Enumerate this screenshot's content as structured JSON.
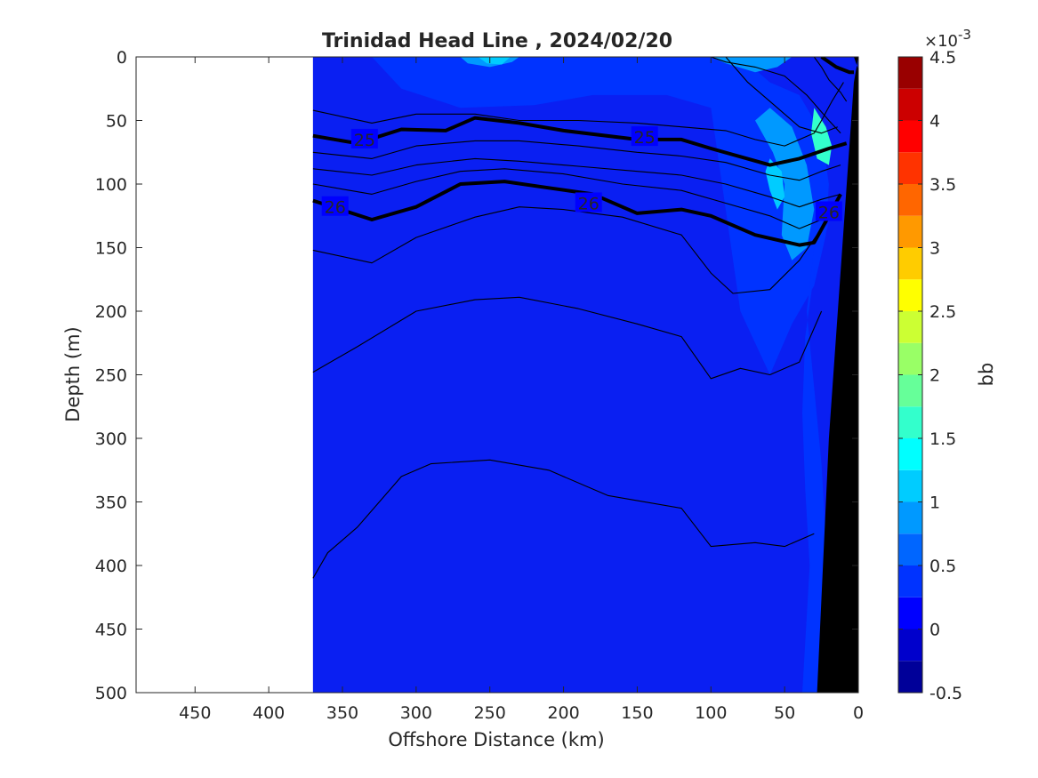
{
  "chart_data": {
    "type": "heatmap",
    "title": "Trinidad Head Line , 2024/02/20",
    "xlabel": "Offshore Distance (km)",
    "ylabel": "Depth (m)",
    "xlim": [
      490,
      0
    ],
    "ylim": [
      500,
      0
    ],
    "x_reversed": true,
    "y_reversed": true,
    "x_ticks": [
      450,
      400,
      350,
      300,
      250,
      200,
      150,
      100,
      50,
      0
    ],
    "y_ticks": [
      0,
      50,
      100,
      150,
      200,
      250,
      300,
      350,
      400,
      450,
      500
    ],
    "data_start_km": 370,
    "colorbar": {
      "label": "bb",
      "exponent_prefix": "×10",
      "exponent": "-3",
      "range": [
        -0.5,
        4.5
      ],
      "ticks": [
        -0.5,
        0,
        0.5,
        1,
        1.5,
        2,
        2.5,
        3,
        3.5,
        4,
        4.5
      ],
      "tick_labels": [
        "-0.5",
        "0",
        "0.5",
        "1",
        "1.5",
        "2",
        "2.5",
        "3",
        "3.5",
        "4",
        "4.5"
      ],
      "colormap": "jet",
      "levels": 20
    },
    "background_color": "#0a1ff2",
    "patches": [
      {
        "value": 0.45,
        "points": [
          [
            370,
            0
          ],
          [
            330,
            0
          ],
          [
            310,
            25
          ],
          [
            270,
            40
          ],
          [
            220,
            38
          ],
          [
            180,
            30
          ],
          [
            130,
            30
          ],
          [
            100,
            40
          ],
          [
            90,
            120
          ],
          [
            80,
            200
          ],
          [
            60,
            250
          ],
          [
            45,
            210
          ],
          [
            30,
            180
          ],
          [
            22,
            140
          ],
          [
            20,
            100
          ],
          [
            25,
            60
          ],
          [
            40,
            30
          ],
          [
            60,
            20
          ],
          [
            80,
            0
          ],
          [
            240,
            0
          ]
        ]
      },
      {
        "value": 0.45,
        "points": [
          [
            20,
            130
          ],
          [
            30,
            150
          ],
          [
            35,
            200
          ],
          [
            30,
            260
          ],
          [
            25,
            320
          ],
          [
            22,
            380
          ],
          [
            24,
            450
          ],
          [
            28,
            500
          ],
          [
            38,
            500
          ],
          [
            35,
            440
          ],
          [
            33,
            400
          ],
          [
            36,
            340
          ],
          [
            38,
            280
          ],
          [
            36,
            220
          ],
          [
            30,
            170
          ]
        ]
      },
      {
        "value": 0.75,
        "points": [
          [
            60,
            40
          ],
          [
            45,
            55
          ],
          [
            35,
            85
          ],
          [
            30,
            120
          ],
          [
            35,
            150
          ],
          [
            45,
            160
          ],
          [
            52,
            140
          ],
          [
            50,
            100
          ],
          [
            58,
            75
          ],
          [
            70,
            50
          ]
        ]
      },
      {
        "value": 0.75,
        "points": [
          [
            100,
            0
          ],
          [
            90,
            5
          ],
          [
            70,
            12
          ],
          [
            55,
            8
          ],
          [
            45,
            0
          ]
        ]
      },
      {
        "value": 0.9,
        "points": [
          [
            270,
            0
          ],
          [
            265,
            5
          ],
          [
            250,
            8
          ],
          [
            235,
            4
          ],
          [
            230,
            0
          ]
        ]
      },
      {
        "value": 1.6,
        "points": [
          [
            30,
            40
          ],
          [
            22,
            55
          ],
          [
            18,
            70
          ],
          [
            20,
            85
          ],
          [
            28,
            80
          ],
          [
            32,
            60
          ]
        ]
      },
      {
        "value": 1.0,
        "points": [
          [
            60,
            80
          ],
          [
            52,
            90
          ],
          [
            50,
            110
          ],
          [
            55,
            120
          ],
          [
            60,
            105
          ],
          [
            63,
            90
          ]
        ]
      },
      {
        "value": 1.2,
        "points": [
          [
            258,
            0
          ],
          [
            252,
            5
          ],
          [
            242,
            6
          ],
          [
            236,
            0
          ]
        ]
      }
    ],
    "isopycnals": [
      {
        "label": "25",
        "bold": true,
        "points": [
          [
            370,
            62
          ],
          [
            340,
            68
          ],
          [
            310,
            57
          ],
          [
            280,
            58
          ],
          [
            260,
            48
          ],
          [
            230,
            52
          ],
          [
            200,
            58
          ],
          [
            150,
            65
          ],
          [
            120,
            65
          ],
          [
            100,
            72
          ],
          [
            60,
            85
          ],
          [
            40,
            80
          ],
          [
            20,
            72
          ],
          [
            8,
            68
          ]
        ],
        "label_at": [
          [
            335,
            65
          ],
          [
            145,
            63
          ]
        ]
      },
      {
        "label": "26",
        "bold": true,
        "points": [
          [
            370,
            113
          ],
          [
            330,
            128
          ],
          [
            300,
            118
          ],
          [
            270,
            100
          ],
          [
            240,
            98
          ],
          [
            210,
            103
          ],
          [
            180,
            108
          ],
          [
            150,
            123
          ],
          [
            120,
            120
          ],
          [
            100,
            125
          ],
          [
            70,
            140
          ],
          [
            40,
            148
          ],
          [
            30,
            146
          ],
          [
            20,
            125
          ],
          [
            12,
            108
          ]
        ],
        "label_at": [
          [
            355,
            118
          ],
          [
            183,
            115
          ],
          [
            20,
            122
          ]
        ]
      },
      {
        "label": "",
        "bold": false,
        "points": [
          [
            370,
            42
          ],
          [
            330,
            52
          ],
          [
            300,
            45
          ],
          [
            260,
            45
          ],
          [
            230,
            50
          ],
          [
            190,
            50
          ],
          [
            150,
            52
          ],
          [
            120,
            55
          ],
          [
            90,
            58
          ],
          [
            70,
            65
          ],
          [
            50,
            70
          ],
          [
            30,
            60
          ],
          [
            25,
            50
          ],
          [
            18,
            35
          ],
          [
            10,
            20
          ]
        ]
      },
      {
        "label": "",
        "bold": false,
        "points": [
          [
            370,
            75
          ],
          [
            330,
            80
          ],
          [
            300,
            70
          ],
          [
            260,
            66
          ],
          [
            230,
            66
          ],
          [
            190,
            70
          ],
          [
            150,
            75
          ],
          [
            120,
            78
          ],
          [
            90,
            83
          ],
          [
            60,
            93
          ],
          [
            40,
            97
          ],
          [
            25,
            90
          ],
          [
            12,
            85
          ]
        ]
      },
      {
        "label": "",
        "bold": false,
        "points": [
          [
            370,
            88
          ],
          [
            330,
            93
          ],
          [
            300,
            85
          ],
          [
            260,
            80
          ],
          [
            230,
            82
          ],
          [
            190,
            86
          ],
          [
            150,
            90
          ],
          [
            120,
            93
          ],
          [
            90,
            100
          ],
          [
            60,
            110
          ],
          [
            40,
            118
          ],
          [
            25,
            112
          ],
          [
            12,
            108
          ]
        ]
      },
      {
        "label": "",
        "bold": false,
        "points": [
          [
            370,
            100
          ],
          [
            330,
            108
          ],
          [
            300,
            98
          ],
          [
            270,
            90
          ],
          [
            240,
            88
          ],
          [
            200,
            92
          ],
          [
            160,
            100
          ],
          [
            120,
            105
          ],
          [
            90,
            115
          ],
          [
            60,
            125
          ],
          [
            40,
            135
          ],
          [
            25,
            128
          ]
        ]
      },
      {
        "label": "",
        "bold": false,
        "points": [
          [
            370,
            152
          ],
          [
            330,
            162
          ],
          [
            300,
            142
          ],
          [
            260,
            126
          ],
          [
            230,
            118
          ],
          [
            200,
            120
          ],
          [
            160,
            126
          ],
          [
            120,
            140
          ],
          [
            100,
            170
          ],
          [
            85,
            186
          ],
          [
            60,
            183
          ],
          [
            40,
            160
          ],
          [
            28,
            140
          ]
        ]
      },
      {
        "label": "",
        "bold": false,
        "points": [
          [
            370,
            248
          ],
          [
            340,
            228
          ],
          [
            300,
            200
          ],
          [
            260,
            191
          ],
          [
            230,
            189
          ],
          [
            190,
            198
          ],
          [
            150,
            210
          ],
          [
            120,
            220
          ],
          [
            100,
            253
          ],
          [
            80,
            245
          ],
          [
            60,
            250
          ],
          [
            40,
            240
          ],
          [
            25,
            200
          ]
        ]
      },
      {
        "label": "",
        "bold": false,
        "points": [
          [
            370,
            410
          ],
          [
            360,
            390
          ],
          [
            340,
            370
          ],
          [
            310,
            330
          ],
          [
            290,
            320
          ],
          [
            250,
            317
          ],
          [
            210,
            325
          ],
          [
            170,
            345
          ],
          [
            120,
            355
          ],
          [
            100,
            385
          ],
          [
            70,
            382
          ],
          [
            50,
            385
          ],
          [
            30,
            375
          ]
        ]
      },
      {
        "label": "",
        "bold": false,
        "points": [
          [
            100,
            0
          ],
          [
            90,
            4
          ],
          [
            70,
            8
          ],
          [
            50,
            15
          ],
          [
            35,
            30
          ],
          [
            20,
            50
          ],
          [
            12,
            60
          ]
        ]
      },
      {
        "label": "",
        "bold": false,
        "points": [
          [
            90,
            0
          ],
          [
            75,
            20
          ],
          [
            55,
            40
          ],
          [
            40,
            55
          ],
          [
            25,
            60
          ],
          [
            14,
            55
          ]
        ]
      },
      {
        "label": "",
        "bold": false,
        "points": [
          [
            30,
            0
          ],
          [
            25,
            8
          ],
          [
            20,
            18
          ],
          [
            12,
            28
          ],
          [
            8,
            35
          ]
        ]
      },
      {
        "label": "",
        "bold": true,
        "points": [
          [
            25,
            0
          ],
          [
            15,
            8
          ],
          [
            6,
            12
          ],
          [
            3,
            12
          ]
        ]
      }
    ],
    "seafloor": {
      "color": "#000000",
      "points": [
        [
          0,
          0
        ],
        [
          3,
          0
        ],
        [
          0,
          10
        ],
        [
          0,
          500
        ],
        [
          28,
          500
        ],
        [
          20,
          300
        ],
        [
          3,
          20
        ]
      ]
    }
  }
}
